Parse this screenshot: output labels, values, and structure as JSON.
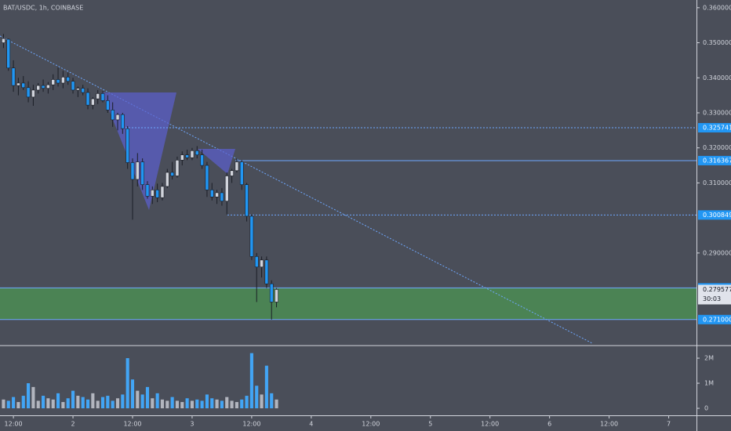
{
  "chart_data": {
    "type": "candlestick",
    "title": "BAT/USDC, 1h, COINBASE",
    "x": [
      -2,
      -1,
      0,
      1,
      2,
      3,
      4,
      5,
      6,
      7,
      8,
      9,
      10,
      11,
      12,
      13,
      14,
      15,
      16,
      17,
      18,
      19,
      20,
      21,
      22,
      23,
      24,
      25,
      26,
      27,
      28,
      29,
      30,
      31,
      32,
      33,
      34,
      35,
      36,
      37,
      38,
      39,
      40,
      41,
      42,
      43,
      44,
      45,
      46,
      47,
      48,
      49,
      50,
      51,
      52,
      53
    ],
    "open": [
      0.35,
      0.351,
      0.3428,
      0.3378,
      0.3385,
      0.3372,
      0.3345,
      0.3365,
      0.3378,
      0.337,
      0.338,
      0.3395,
      0.3385,
      0.3402,
      0.339,
      0.3365,
      0.337,
      0.3358,
      0.3322,
      0.334,
      0.3355,
      0.3335,
      0.3308,
      0.328,
      0.3295,
      0.3255,
      0.3158,
      0.311,
      0.316,
      0.3095,
      0.3062,
      0.308,
      0.3058,
      0.309,
      0.313,
      0.312,
      0.3165,
      0.318,
      0.3172,
      0.3192,
      0.318,
      0.315,
      0.308,
      0.306,
      0.3072,
      0.3048,
      0.312,
      0.3135,
      0.316,
      0.3095,
      0.3005,
      0.289,
      0.286,
      0.288,
      0.2812,
      0.276
    ],
    "high": [
      0.3525,
      0.3512,
      0.345,
      0.34,
      0.3405,
      0.339,
      0.338,
      0.3385,
      0.3395,
      0.3388,
      0.341,
      0.343,
      0.342,
      0.3415,
      0.34,
      0.3375,
      0.338,
      0.337,
      0.3345,
      0.3365,
      0.3362,
      0.335,
      0.333,
      0.33,
      0.33,
      0.3262,
      0.317,
      0.3185,
      0.317,
      0.3105,
      0.309,
      0.3098,
      0.31,
      0.314,
      0.316,
      0.3175,
      0.319,
      0.3195,
      0.32,
      0.3205,
      0.3195,
      0.316,
      0.31,
      0.308,
      0.3085,
      0.313,
      0.314,
      0.317,
      0.3165,
      0.31,
      0.301,
      0.29,
      0.289,
      0.289,
      0.2822,
      0.28
    ],
    "low": [
      0.3485,
      0.342,
      0.336,
      0.335,
      0.3365,
      0.333,
      0.332,
      0.3355,
      0.336,
      0.3355,
      0.3365,
      0.3375,
      0.337,
      0.338,
      0.3355,
      0.3345,
      0.335,
      0.331,
      0.331,
      0.3325,
      0.333,
      0.33,
      0.326,
      0.325,
      0.324,
      0.314,
      0.2995,
      0.309,
      0.308,
      0.3055,
      0.304,
      0.3045,
      0.305,
      0.3085,
      0.311,
      0.3115,
      0.315,
      0.3165,
      0.3165,
      0.317,
      0.314,
      0.306,
      0.305,
      0.304,
      0.3035,
      0.301,
      0.31,
      0.313,
      0.308,
      0.299,
      0.288,
      0.276,
      0.283,
      0.28,
      0.271,
      0.2745
    ],
    "close": [
      0.3512,
      0.3428,
      0.3378,
      0.3385,
      0.3372,
      0.3345,
      0.3365,
      0.3378,
      0.337,
      0.338,
      0.3395,
      0.3385,
      0.3402,
      0.339,
      0.3365,
      0.337,
      0.3358,
      0.3322,
      0.334,
      0.3355,
      0.3335,
      0.3308,
      0.328,
      0.3295,
      0.3255,
      0.3158,
      0.311,
      0.316,
      0.3095,
      0.3062,
      0.308,
      0.3058,
      0.309,
      0.313,
      0.312,
      0.3165,
      0.318,
      0.3172,
      0.3192,
      0.318,
      0.315,
      0.308,
      0.306,
      0.3072,
      0.3048,
      0.312,
      0.3135,
      0.316,
      0.3095,
      0.3005,
      0.289,
      0.286,
      0.288,
      0.2812,
      0.276,
      0.2796
    ],
    "volume": [
      350000,
      300000,
      450000,
      250000,
      500000,
      1000000,
      850000,
      300000,
      500000,
      400000,
      350000,
      600000,
      250000,
      400000,
      700000,
      500000,
      450000,
      350000,
      600000,
      300000,
      450000,
      500000,
      300000,
      400000,
      550000,
      2000000,
      1150000,
      700000,
      550000,
      850000,
      400000,
      600000,
      350000,
      300000,
      450000,
      300000,
      250000,
      400000,
      300000,
      350000,
      300000,
      550000,
      400000,
      350000,
      300000,
      450000,
      300000,
      250000,
      350000,
      500000,
      2200000,
      900000,
      550000,
      1700000,
      600000,
      350000
    ],
    "up_color": "#d1d4dc",
    "down_color": "#2196f3",
    "volume_up_color": "#b2b5be",
    "volume_down_color": "#42a5f5",
    "xlim": [
      -2.7,
      137.6
    ],
    "xticks": [
      {
        "value": 0,
        "label": "12:00"
      },
      {
        "value": 12,
        "label": "2"
      },
      {
        "value": 24,
        "label": "12:00"
      },
      {
        "value": 36,
        "label": "3"
      },
      {
        "value": 48,
        "label": "12:00"
      },
      {
        "value": 60,
        "label": "4"
      },
      {
        "value": 72,
        "label": "12:00"
      },
      {
        "value": 84,
        "label": "5"
      },
      {
        "value": 96,
        "label": "12:00"
      },
      {
        "value": 108,
        "label": "6"
      },
      {
        "value": 120,
        "label": "12:00"
      },
      {
        "value": 132,
        "label": "7"
      }
    ],
    "ylim": [
      0.2638,
      0.3622
    ],
    "yticks": [
      {
        "value": 0.36,
        "label": "0.360000"
      },
      {
        "value": 0.35,
        "label": "0.350000"
      },
      {
        "value": 0.34,
        "label": "0.340000"
      },
      {
        "value": 0.33,
        "label": "0.330000"
      },
      {
        "value": 0.32,
        "label": "0.320000"
      },
      {
        "value": 0.31,
        "label": "0.310000"
      },
      {
        "value": 0.29,
        "label": "0.290000"
      }
    ],
    "levels": [
      {
        "price": 0.325741,
        "style": "dotted"
      },
      {
        "price": 0.316367,
        "style": "solid"
      },
      {
        "price": 0.300849,
        "style": "dotted"
      }
    ],
    "zone": {
      "top": 0.280053,
      "bottom": {
        "value": 0.271,
        "label": "0.271000"
      },
      "color": "#4caf50"
    },
    "level_color": "#2196f3",
    "last_price": 0.279577,
    "countdown": "30:03",
    "volume_ylim": [
      -280000,
      2470000
    ],
    "volume_yticks": [
      {
        "value": 2000000,
        "label": "2M"
      },
      {
        "value": 1000000,
        "label": "1M"
      },
      0
    ]
  }
}
